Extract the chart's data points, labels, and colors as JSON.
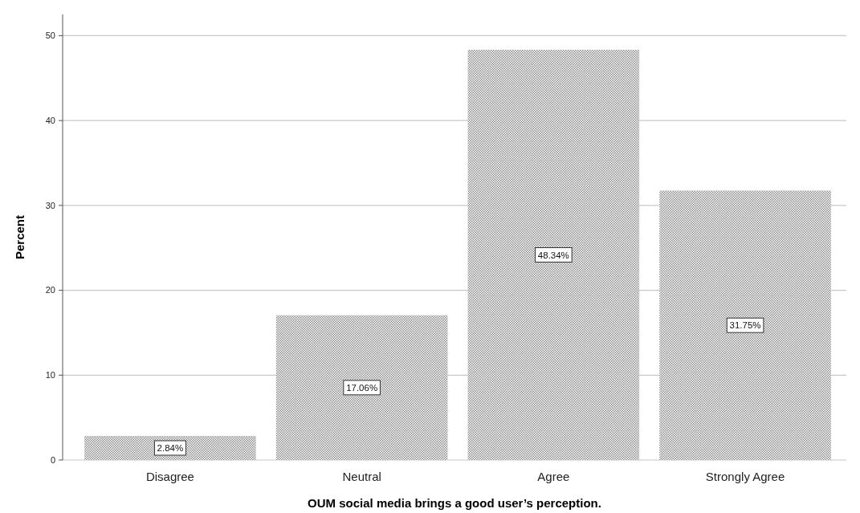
{
  "chart_data": {
    "type": "bar",
    "xlabel": "OUM social media brings a good user’s perception.",
    "ylabel": "Percent",
    "categories": [
      "Disagree",
      "Neutral",
      "Agree",
      "Strongly Agree"
    ],
    "values": [
      2.84,
      17.06,
      48.34,
      31.75
    ],
    "value_labels": [
      "2.84%",
      "17.06%",
      "48.34%",
      "31.75%"
    ],
    "color": "#8c8c8c",
    "ylim": [
      0,
      52.5
    ],
    "yticks": [
      0,
      10,
      20,
      30,
      40,
      50
    ],
    "grid": "y"
  }
}
